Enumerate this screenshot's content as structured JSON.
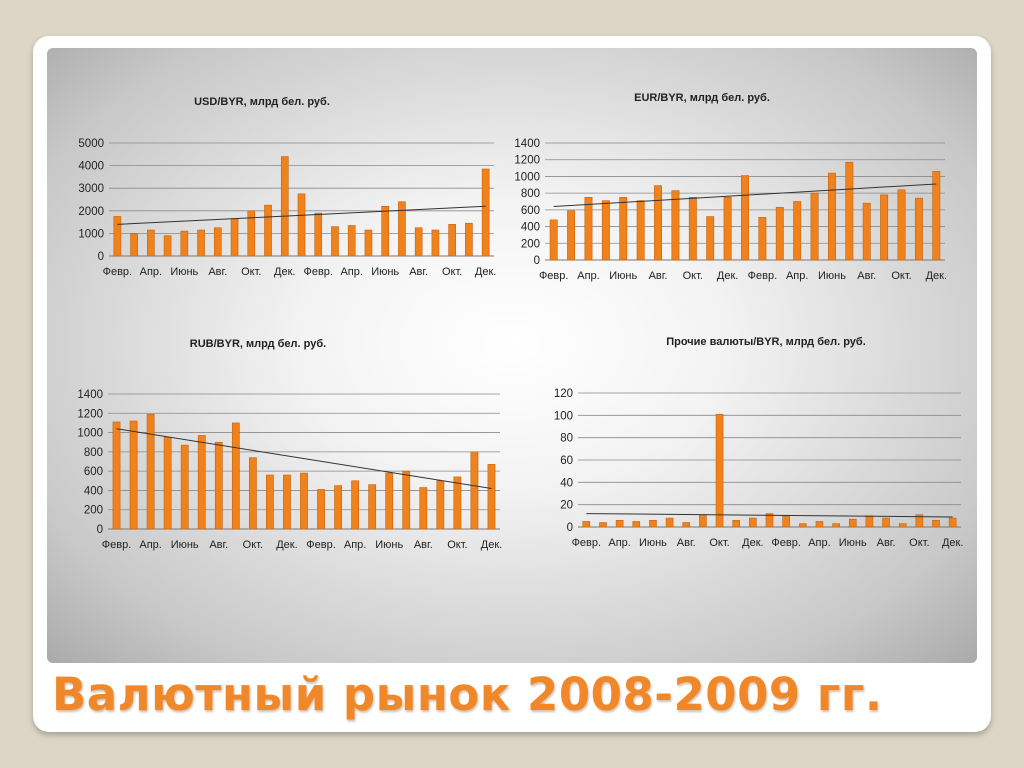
{
  "slide": {
    "title": "Валютный рынок 2008-2009 гг."
  },
  "colors": {
    "bar": "#f0821e",
    "bar_edge": "#c8620a",
    "trend": "#333333",
    "grid": "#8a8a8a",
    "title_accent": "#f0882a"
  },
  "chart_data": [
    {
      "type": "bar",
      "title": "USD/BYR, млрд бел. руб.",
      "ylim": [
        0,
        5000
      ],
      "yticks": [
        0,
        1000,
        2000,
        3000,
        4000,
        5000
      ],
      "categories": [
        "Февр.",
        "",
        "Апр.",
        "",
        "Июнь",
        "",
        "Авг.",
        "",
        "Окт.",
        "",
        "Дек.",
        "",
        "Февр.",
        "",
        "Апр.",
        "",
        "Июнь",
        "",
        "Авг.",
        "",
        "Окт.",
        "",
        "Дек."
      ],
      "values": [
        1750,
        980,
        1150,
        900,
        1100,
        1150,
        1250,
        1650,
        2000,
        2250,
        4400,
        2750,
        1900,
        1300,
        1350,
        1150,
        2200,
        2400,
        1250,
        1150,
        1400,
        1450,
        3850
      ],
      "trend": [
        1400,
        2200
      ],
      "grid": true,
      "legend": "none"
    },
    {
      "type": "bar",
      "title": "EUR/BYR, млрд бел. руб.",
      "ylim": [
        0,
        1400
      ],
      "yticks": [
        0,
        200,
        400,
        600,
        800,
        1000,
        1200,
        1400
      ],
      "categories": [
        "Февр.",
        "",
        "Апр.",
        "",
        "Июнь",
        "",
        "Авг.",
        "",
        "Окт.",
        "",
        "Дек.",
        "",
        "Февр.",
        "",
        "Апр.",
        "",
        "Июнь",
        "",
        "Авг.",
        "",
        "Окт.",
        "",
        "Дек."
      ],
      "values": [
        480,
        590,
        750,
        710,
        750,
        710,
        890,
        830,
        750,
        520,
        750,
        1010,
        510,
        630,
        700,
        800,
        1040,
        1170,
        680,
        780,
        840,
        740,
        1060
      ],
      "trend": [
        640,
        910
      ],
      "grid": true,
      "legend": "none"
    },
    {
      "type": "bar",
      "title": "RUB/BYR, млрд бел. руб.",
      "ylim": [
        0,
        1400
      ],
      "yticks": [
        0,
        200,
        400,
        600,
        800,
        1000,
        1200,
        1400
      ],
      "categories": [
        "Февр.",
        "",
        "Апр.",
        "",
        "Июнь",
        "",
        "Авг.",
        "",
        "Окт.",
        "",
        "Дек.",
        "",
        "Февр.",
        "",
        "Апр.",
        "",
        "Июнь",
        "",
        "Авг.",
        "",
        "Окт.",
        "",
        "Дек."
      ],
      "values": [
        1110,
        1120,
        1190,
        950,
        870,
        970,
        900,
        1100,
        740,
        560,
        560,
        580,
        410,
        450,
        500,
        460,
        580,
        600,
        430,
        500,
        540,
        800,
        670
      ],
      "trend": [
        1040,
        420
      ],
      "grid": true,
      "legend": "none"
    },
    {
      "type": "bar",
      "title": "Прочие валюты/BYR, млрд бел. руб.",
      "ylim": [
        0,
        120
      ],
      "yticks": [
        0,
        20,
        40,
        60,
        80,
        100,
        120
      ],
      "categories": [
        "Февр.",
        "",
        "Апр.",
        "",
        "Июнь",
        "",
        "Авг.",
        "",
        "Окт.",
        "",
        "Дек.",
        "",
        "Февр.",
        "",
        "Апр.",
        "",
        "Июнь",
        "",
        "Авг.",
        "",
        "Окт.",
        "",
        "Дек."
      ],
      "values": [
        5,
        4,
        6,
        5,
        6,
        8,
        4,
        11,
        101,
        6,
        8,
        12,
        10,
        3,
        5,
        3,
        7,
        10,
        8,
        3,
        11,
        6,
        8
      ],
      "trend": [
        12,
        9
      ],
      "grid": true,
      "legend": "none"
    }
  ]
}
